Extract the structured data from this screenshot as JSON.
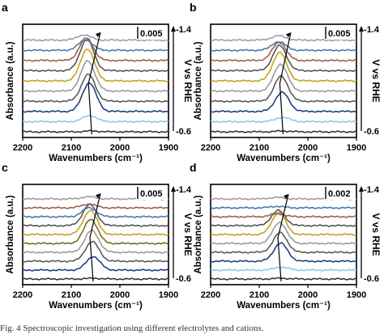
{
  "caption": "Fig. 4   Spectroscopic investigation using different electrolytes and cations.",
  "chart_data": [
    {
      "panel": "a",
      "type": "line",
      "xlabel": "Wavenumbers (cm⁻¹)",
      "ylabel": "Absorbance (a.u.)",
      "right_label": "V vs RHE",
      "v_top": "-1.4",
      "v_bottom": "-0.6",
      "scale_bar": "0.005",
      "xlim": [
        2200,
        1900
      ],
      "xticks": [
        "2200",
        "2100",
        "2000",
        "1900"
      ],
      "peak_positions_cm": [
        2074,
        2071,
        2069,
        2068,
        2067,
        2066,
        2065,
        2063,
        2062,
        2058
      ],
      "arrow": {
        "from": [
          2058,
          0
        ],
        "to": [
          2040,
          10
        ]
      },
      "series": [
        {
          "amp": 0.1,
          "pos": 2058,
          "color": "#2a3a4a"
        },
        {
          "amp": 0.7,
          "pos": 2062,
          "color": "#8cc8e8"
        },
        {
          "amp": 3.3,
          "pos": 2063,
          "color": "#1f3f80"
        },
        {
          "amp": 3.1,
          "pos": 2065,
          "color": "#5a5a5a"
        },
        {
          "amp": 3.5,
          "pos": 2066,
          "color": "#9a9a9a"
        },
        {
          "amp": 3.7,
          "pos": 2067,
          "color": "#c8a020"
        },
        {
          "amp": 3.6,
          "pos": 2068,
          "color": "#555555"
        },
        {
          "amp": 2.6,
          "pos": 2069,
          "color": "#a0604a"
        },
        {
          "amp": 1.2,
          "pos": 2071,
          "color": "#4a78b0"
        },
        {
          "amp": 0.6,
          "pos": 2074,
          "color": "#a89aa0"
        }
      ]
    },
    {
      "panel": "b",
      "type": "line",
      "xlabel": "Wavenumbers (cm⁻¹)",
      "ylabel": "Absorbance (a.u.)",
      "right_label": "V vs RHE",
      "v_top": "-1.4",
      "v_bottom": "-0.6",
      "scale_bar": "0.005",
      "xlim": [
        2200,
        1900
      ],
      "xticks": [
        "2200",
        "2100",
        "2000",
        "1900"
      ],
      "arrow": {
        "from": [
          2051,
          0
        ],
        "to": [
          2035,
          10
        ]
      },
      "series": [
        {
          "amp": 0.1,
          "pos": 2051,
          "color": "#2a3a4a"
        },
        {
          "amp": 0.5,
          "pos": 2052,
          "color": "#8cc8e8"
        },
        {
          "amp": 2.2,
          "pos": 2053,
          "color": "#1f3f80"
        },
        {
          "amp": 2.9,
          "pos": 2055,
          "color": "#5a5a5a"
        },
        {
          "amp": 3.1,
          "pos": 2056,
          "color": "#9a9a9a"
        },
        {
          "amp": 3.3,
          "pos": 2058,
          "color": "#c8a020"
        },
        {
          "amp": 2.9,
          "pos": 2058,
          "color": "#555555"
        },
        {
          "amp": 2.1,
          "pos": 2059,
          "color": "#a0604a"
        },
        {
          "amp": 1.0,
          "pos": 2060,
          "color": "#4a78b0"
        },
        {
          "amp": 0.5,
          "pos": 2060,
          "color": "#a89aa0"
        }
      ]
    },
    {
      "panel": "c",
      "type": "line",
      "xlabel": "Wavenumbers (cm⁻¹)",
      "ylabel": "Absorbance (a.u.)",
      "right_label": "V vs RHE",
      "v_top": "-1.4",
      "v_bottom": "-0.6",
      "scale_bar": "0.005",
      "xlim": [
        2200,
        1900
      ],
      "xticks": [
        "2200",
        "2100",
        "2000",
        "1900"
      ],
      "arrow": {
        "from": [
          2055,
          0
        ],
        "to": [
          2040,
          10
        ]
      },
      "series": [
        {
          "amp": 0.1,
          "pos": 2055,
          "color": "#2a3a4a"
        },
        {
          "amp": 1.8,
          "pos": 2055,
          "color": "#1f3f80"
        },
        {
          "amp": 2.6,
          "pos": 2057,
          "color": "#5a5a5a"
        },
        {
          "amp": 2.9,
          "pos": 2058,
          "color": "#9a9a9a"
        },
        {
          "amp": 3.2,
          "pos": 2060,
          "color": "#7a6a20"
        },
        {
          "amp": 3.2,
          "pos": 2061,
          "color": "#c8a020"
        },
        {
          "amp": 2.8,
          "pos": 2062,
          "color": "#555555"
        },
        {
          "amp": 1.2,
          "pos": 2063,
          "color": "#4a78b0"
        },
        {
          "amp": 0.5,
          "pos": 2064,
          "color": "#a0604a"
        },
        {
          "amp": 0.3,
          "pos": 2064,
          "color": "#a89aa0"
        }
      ]
    },
    {
      "panel": "d",
      "type": "line",
      "xlabel": "Wavenumbers (cm⁻¹)",
      "ylabel": "Absorbance (a.u.)",
      "right_label": "V vs RHE",
      "v_top": "-1.4",
      "v_bottom": "-0.6",
      "scale_bar": "0.002",
      "xlim": [
        2200,
        1900
      ],
      "xticks": [
        "2200",
        "2100",
        "2000",
        "1900"
      ],
      "arrow": {
        "from": [
          2055,
          0
        ],
        "to": [
          2040,
          10
        ]
      },
      "series": [
        {
          "amp": 0.1,
          "pos": 2055,
          "color": "#2a3a4a"
        },
        {
          "amp": 0.4,
          "pos": 2055,
          "color": "#8cc8e8"
        },
        {
          "amp": 2.4,
          "pos": 2056,
          "color": "#1f3f80"
        },
        {
          "amp": 2.6,
          "pos": 2057,
          "color": "#5a5a5a"
        },
        {
          "amp": 2.8,
          "pos": 2058,
          "color": "#9a9a9a"
        },
        {
          "amp": 2.9,
          "pos": 2060,
          "color": "#c8a020"
        },
        {
          "amp": 2.0,
          "pos": 2061,
          "color": "#555555"
        },
        {
          "amp": 0.4,
          "pos": 2062,
          "color": "#a0604a"
        },
        {
          "amp": 0.2,
          "pos": 2063,
          "color": "#4a78b0"
        },
        {
          "amp": 0.2,
          "pos": 2064,
          "color": "#a89aa0"
        }
      ]
    }
  ]
}
